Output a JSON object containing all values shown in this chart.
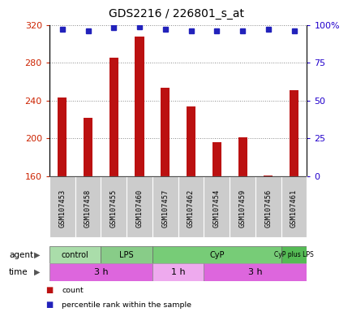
{
  "title": "GDS2216 / 226801_s_at",
  "samples": [
    "GSM107453",
    "GSM107458",
    "GSM107455",
    "GSM107460",
    "GSM107457",
    "GSM107462",
    "GSM107454",
    "GSM107459",
    "GSM107456",
    "GSM107461"
  ],
  "counts": [
    243,
    222,
    285,
    308,
    254,
    234,
    196,
    201,
    161,
    251
  ],
  "percentile_ranks": [
    97,
    96,
    98,
    99,
    97,
    96,
    96,
    96,
    97,
    96
  ],
  "ylim_left": [
    160,
    320
  ],
  "ylim_right": [
    0,
    100
  ],
  "yticks_left": [
    160,
    200,
    240,
    280,
    320
  ],
  "yticks_right": [
    0,
    25,
    50,
    75,
    100
  ],
  "agent_groups": [
    {
      "label": "control",
      "start": 0,
      "end": 2,
      "color": "#aaddaa"
    },
    {
      "label": "LPS",
      "start": 2,
      "end": 4,
      "color": "#88cc88"
    },
    {
      "label": "CyP",
      "start": 4,
      "end": 9,
      "color": "#77cc77"
    },
    {
      "label": "CyP plus LPS",
      "start": 9,
      "end": 10,
      "color": "#55bb55"
    }
  ],
  "time_groups": [
    {
      "label": "3 h",
      "start": 0,
      "end": 4,
      "color": "#dd66dd"
    },
    {
      "label": "1 h",
      "start": 4,
      "end": 6,
      "color": "#eeaaee"
    },
    {
      "label": "3 h",
      "start": 6,
      "end": 10,
      "color": "#dd66dd"
    }
  ],
  "bar_color": "#bb1111",
  "dot_color": "#2222bb",
  "grid_color": "#888888",
  "label_color_left": "#cc2200",
  "label_color_right": "#2200cc",
  "bar_width": 0.35,
  "dot_size": 5,
  "legend_items": [
    {
      "color": "#bb1111",
      "label": "count"
    },
    {
      "color": "#2222bb",
      "label": "percentile rank within the sample"
    }
  ]
}
